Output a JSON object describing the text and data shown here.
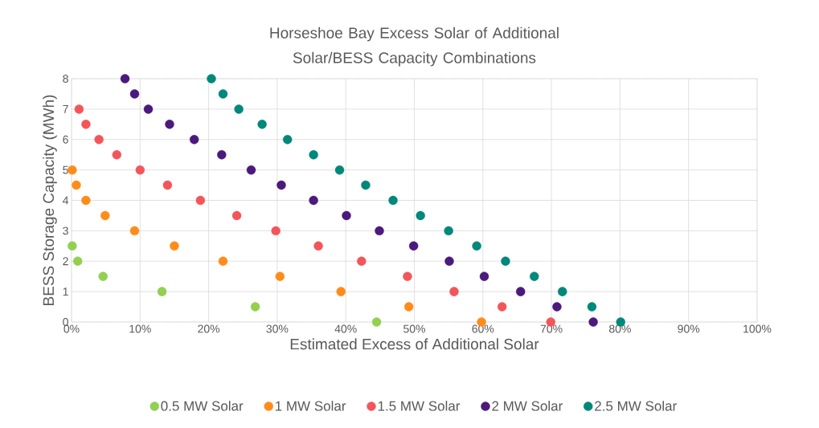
{
  "chart_data": {
    "type": "scatter",
    "title": "Horseshoe Bay Excess Solar of Additional Solar/BESS Capacity Combinations",
    "xlabel": "Estimated Excess of Additional Solar",
    "ylabel": "BESS Storage Capacity (MWh)",
    "xlim": [
      0,
      100
    ],
    "ylim": [
      0,
      8
    ],
    "xticks": [
      {
        "value": 0,
        "label": "0%"
      },
      {
        "value": 10,
        "label": "10%"
      },
      {
        "value": 20,
        "label": "20%"
      },
      {
        "value": 30,
        "label": "30%"
      },
      {
        "value": 40,
        "label": "40%"
      },
      {
        "value": 50,
        "label": "50%"
      },
      {
        "value": 60,
        "label": "60%"
      },
      {
        "value": 70,
        "label": "70%"
      },
      {
        "value": 80,
        "label": "80%"
      },
      {
        "value": 90,
        "label": "90%"
      },
      {
        "value": 100,
        "label": "100%"
      }
    ],
    "yticks": [
      0,
      1,
      2,
      3,
      4,
      5,
      6,
      7,
      8
    ],
    "grid": true,
    "legend": "bottom",
    "marker": "circle",
    "series": [
      {
        "name": "0.5 MW Solar",
        "color": "#92d050",
        "x": [
          0.1,
          0.9,
          4.6,
          13.2,
          26.8,
          44.5
        ],
        "values": [
          2.5,
          2,
          1.5,
          1,
          0.5,
          0
        ]
      },
      {
        "name": "1 MW Solar",
        "color": "#ff8c1a",
        "x": [
          0.1,
          0.7,
          2.1,
          4.9,
          9.2,
          15.0,
          22.1,
          30.4,
          39.3,
          49.2,
          59.8
        ],
        "values": [
          5,
          4.5,
          4,
          3.5,
          3,
          2.5,
          2,
          1.5,
          1,
          0.5,
          0
        ]
      },
      {
        "name": "1.5 MW Solar",
        "color": "#f4555a",
        "x": [
          1.1,
          2.1,
          4.0,
          6.6,
          10.0,
          14.0,
          18.8,
          24.1,
          29.8,
          36.0,
          42.3,
          49.0,
          55.8,
          62.8,
          69.9
        ],
        "values": [
          7,
          6.5,
          6,
          5.5,
          5,
          4.5,
          4,
          3.5,
          3,
          2.5,
          2,
          1.5,
          1,
          0.5,
          0
        ]
      },
      {
        "name": "2 MW Solar",
        "color": "#4b1a7d",
        "x": [
          7.8,
          9.2,
          11.2,
          14.3,
          17.9,
          21.9,
          26.2,
          30.6,
          35.3,
          40.1,
          44.9,
          49.9,
          55.1,
          60.2,
          65.5,
          70.8,
          76.1
        ],
        "values": [
          8,
          7.5,
          7,
          6.5,
          6,
          5.5,
          5,
          4.5,
          4,
          3.5,
          3,
          2.5,
          2,
          1.5,
          1,
          0.5,
          0
        ]
      },
      {
        "name": "2.5 MW Solar",
        "color": "#00887a",
        "x": [
          20.4,
          22.1,
          24.4,
          27.8,
          31.5,
          35.3,
          39.1,
          42.9,
          46.9,
          50.9,
          55.0,
          59.1,
          63.3,
          67.5,
          71.6,
          75.9,
          80.1
        ],
        "values": [
          8,
          7.5,
          7,
          6.5,
          6,
          5.5,
          5,
          4.5,
          4,
          3.5,
          3,
          2.5,
          2,
          1.5,
          1,
          0.5,
          0
        ]
      }
    ]
  }
}
